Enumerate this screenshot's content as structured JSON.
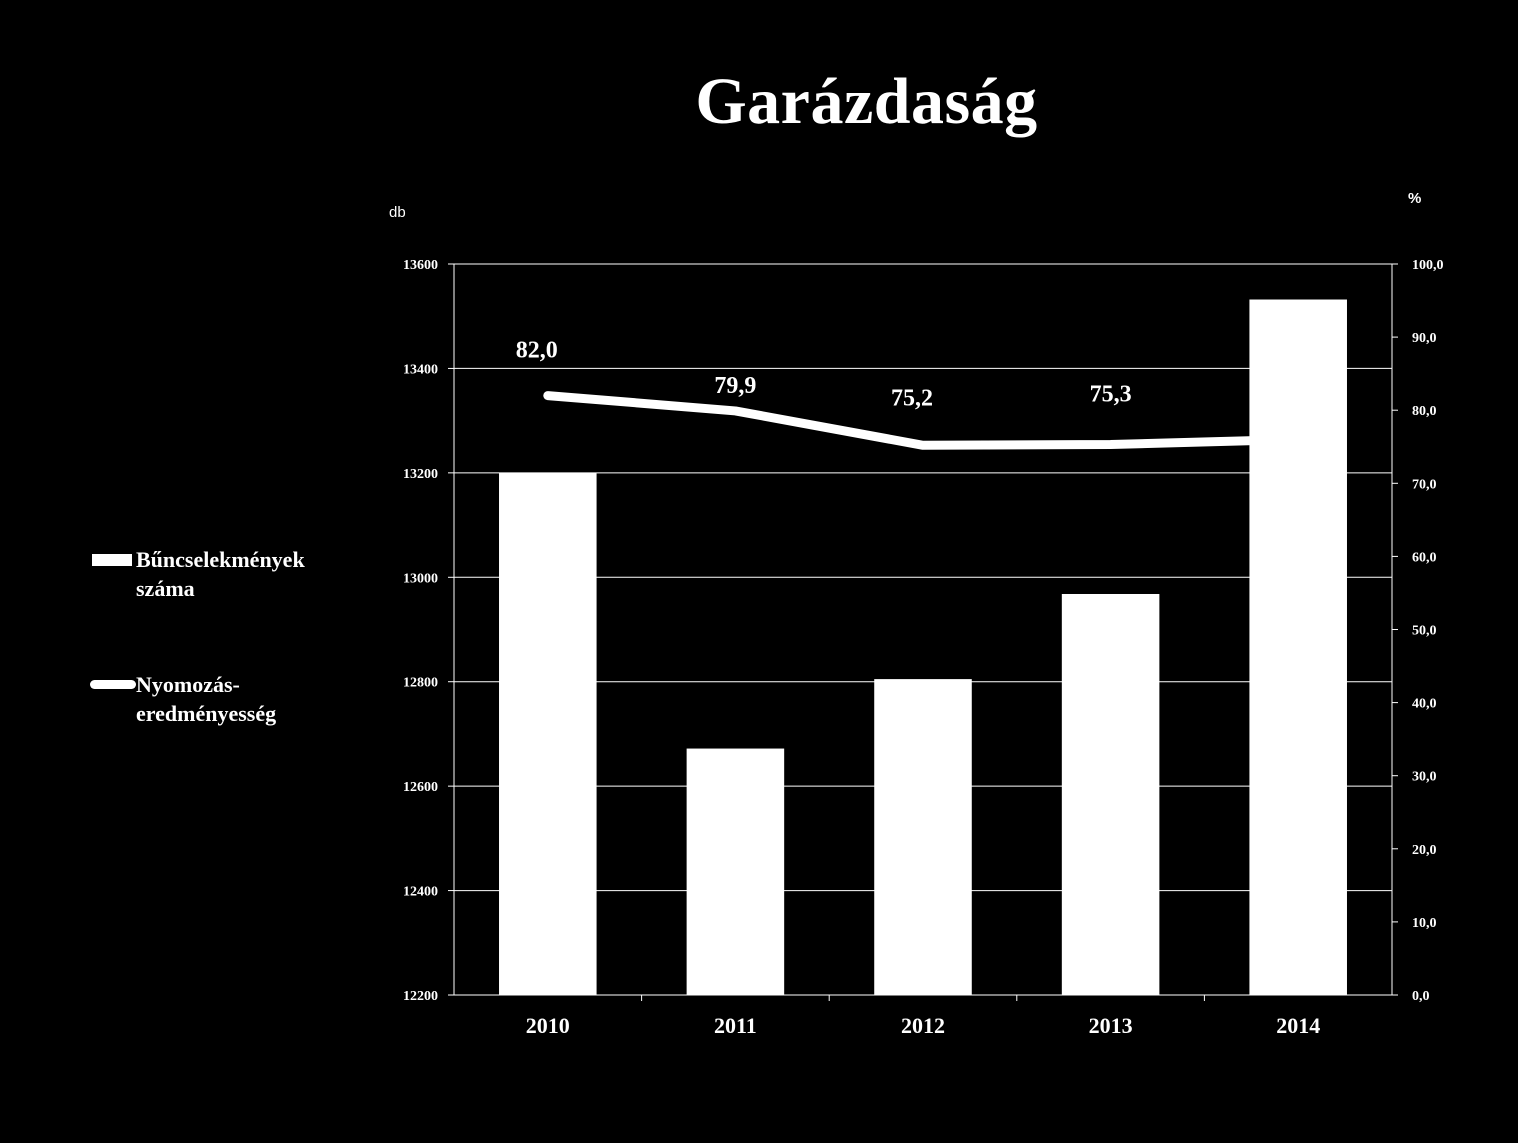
{
  "chart_data": {
    "type": "bar",
    "title": "Garázdaság",
    "categories": [
      "2010",
      "2011",
      "2012",
      "2013",
      "2014"
    ],
    "series": [
      {
        "name": "Bűncselekmények száma",
        "type": "bar",
        "axis": "left",
        "values": [
          13200,
          12672,
          12805,
          12968,
          13532
        ]
      },
      {
        "name": "Nyomozás-eredményesség",
        "type": "line",
        "axis": "right",
        "values": [
          82.0,
          79.9,
          75.2,
          75.3,
          76.0
        ],
        "labels": [
          "82,0",
          "79,9",
          "75,2",
          "75,3",
          ""
        ]
      }
    ],
    "y_left": {
      "label": "db",
      "ylim": [
        12200,
        13600
      ],
      "ticks": [
        "12200",
        "12400",
        "12600",
        "12800",
        "13000",
        "13200",
        "13400",
        "13600"
      ]
    },
    "y_right": {
      "label": "%",
      "ylim": [
        0,
        100
      ],
      "ticks": [
        "0,0",
        "10,0",
        "20,0",
        "30,0",
        "40,0",
        "50,0",
        "60,0",
        "70,0",
        "80,0",
        "90,0",
        "100,0"
      ]
    },
    "grid": true,
    "legend_position": "left",
    "colors": {
      "background": "#000000",
      "bars": "#ffffff",
      "line": "#ffffff",
      "text": "#ffffff",
      "grid": "#ffffff"
    }
  }
}
